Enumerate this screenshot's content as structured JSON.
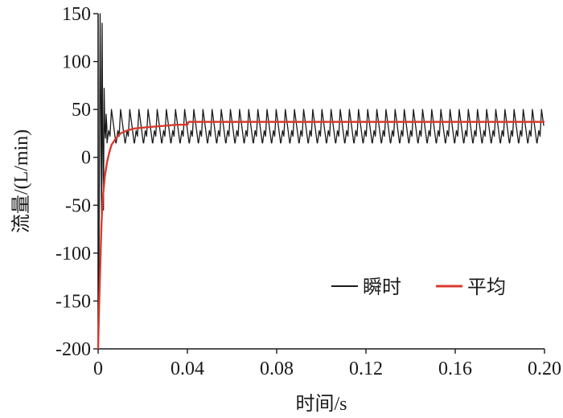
{
  "chart_data": {
    "type": "line",
    "title": "",
    "xlabel": "时间/s",
    "ylabel": "流量/(L/min)",
    "xlim": [
      0,
      0.2
    ],
    "ylim": [
      -200,
      150
    ],
    "xticks": [
      "0",
      "0.04",
      "0.08",
      "0.12",
      "0.16",
      "0.20"
    ],
    "xtick_values": [
      0,
      0.04,
      0.08,
      0.12,
      0.16,
      0.2
    ],
    "yticks": [
      "150",
      "100",
      "50",
      "0",
      "-50",
      "-100",
      "-150",
      "-200"
    ],
    "ytick_values": [
      150,
      100,
      50,
      0,
      -50,
      -100,
      -150,
      -200
    ],
    "grid": false,
    "legend_position": "lower-right",
    "series": [
      {
        "name": "瞬时",
        "color": "#1a1a1a",
        "startup_x": [
          0,
          0.0003,
          0.0006,
          0.0009,
          0.0012,
          0.0015,
          0.0018,
          0.0021,
          0.0024,
          0.0027,
          0.003,
          0.0033,
          0.0036,
          0.0039
        ],
        "startup_y": [
          -200,
          -150,
          0,
          150,
          60,
          -60,
          140,
          10,
          -55,
          72,
          30,
          20,
          45,
          32
        ],
        "steady_x_start": 0.004,
        "steady_period": 0.0041,
        "steady_peak": 50,
        "steady_trough": 15,
        "steady_sub_peak": 28,
        "x_end": 0.2
      },
      {
        "name": "平均",
        "color": "#d83a2e",
        "x": [
          0,
          0.0005,
          0.001,
          0.0015,
          0.002,
          0.003,
          0.004,
          0.005,
          0.006,
          0.008,
          0.01,
          0.013,
          0.016,
          0.02,
          0.025,
          0.03,
          0.035,
          0.04,
          0.0405,
          0.05,
          0.1,
          0.15,
          0.2
        ],
        "y": [
          -200,
          -150,
          -110,
          -70,
          -45,
          -20,
          -5,
          5,
          13,
          20,
          25,
          28,
          30,
          31,
          32,
          33,
          34,
          34,
          37,
          37,
          37,
          37,
          37
        ]
      }
    ]
  }
}
